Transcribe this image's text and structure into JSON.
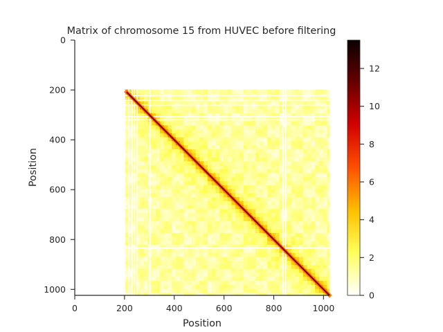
{
  "chart_data": {
    "type": "heatmap",
    "title": "Matrix of chromosome 15 from HUVEC before filtering",
    "xlabel": "Position",
    "ylabel": "Position",
    "x_range": [
      0,
      1024
    ],
    "y_range": [
      0,
      1024
    ],
    "y_inverted": true,
    "x_ticks": [
      "0",
      "200",
      "400",
      "600",
      "800",
      "1000"
    ],
    "y_ticks": [
      "0",
      "200",
      "400",
      "600",
      "800",
      "1000"
    ],
    "data_region": {
      "start": 198,
      "end": 1024
    },
    "diagonal_max": 13.5,
    "background_level_range": [
      0.5,
      3.0
    ],
    "filtered_row_bands": [
      220,
      240,
      258,
      305,
      318,
      832
    ],
    "filtered_col_bands": [
      198,
      215,
      228,
      237,
      248,
      300,
      835,
      845
    ],
    "colorbar": {
      "min": 0,
      "max": 13.5,
      "ticks": [
        "0",
        "2",
        "4",
        "6",
        "8",
        "10",
        "12"
      ],
      "colormap": "hot_r",
      "colors": [
        "#ffffff",
        "#ffff5a",
        "#ffc000",
        "#ff5000",
        "#d20000",
        "#640000",
        "#0a0000"
      ]
    },
    "grid": false
  }
}
